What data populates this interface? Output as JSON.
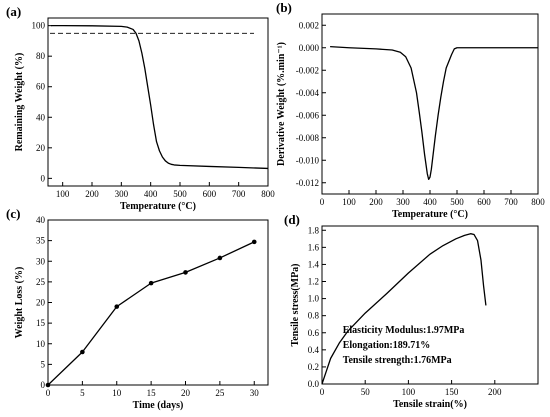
{
  "chart_data": [
    {
      "id": "a",
      "type": "line",
      "panel_label": "(a)",
      "title": "",
      "xlabel": "Temperature (°C)",
      "ylabel": "Remaining Weight (%)",
      "xlim": [
        50,
        800
      ],
      "ylim": [
        -5,
        105
      ],
      "xticks": [
        100,
        200,
        300,
        400,
        500,
        600,
        700,
        800
      ],
      "yticks": [
        0,
        20,
        40,
        60,
        80,
        100
      ],
      "reference_line": {
        "y": 95,
        "style": "dashed"
      },
      "series": [
        {
          "color": "#000000",
          "x": [
            60,
            100,
            200,
            300,
            320,
            340,
            350,
            360,
            370,
            380,
            390,
            400,
            410,
            420,
            430,
            440,
            450,
            460,
            470,
            480,
            500,
            600,
            700,
            800
          ],
          "y": [
            100,
            100,
            99.9,
            99.5,
            99,
            97.5,
            95,
            90,
            82,
            72,
            60,
            48,
            35,
            24,
            18,
            14,
            11.5,
            10,
            9.2,
            8.8,
            8.5,
            7.8,
            7.2,
            6.5
          ]
        }
      ]
    },
    {
      "id": "b",
      "type": "line",
      "panel_label": "(b)",
      "title": "",
      "xlabel": "Temperature (°C)",
      "ylabel": "Derivative Weight (%.min⁻¹)",
      "xlim": [
        0,
        800
      ],
      "ylim": [
        -0.013,
        0.003
      ],
      "xticks": [
        0,
        100,
        200,
        300,
        400,
        500,
        600,
        700,
        800
      ],
      "yticks": [
        0.002,
        0.0,
        -0.002,
        -0.004,
        -0.006,
        -0.008,
        -0.01,
        -0.012
      ],
      "ytick_labels": [
        "0.002",
        "0.000",
        "-0.002",
        "-0.004",
        "-0.006",
        "-0.008",
        "-0.010",
        "-0.012"
      ],
      "series": [
        {
          "color": "#000000",
          "x": [
            30,
            100,
            200,
            260,
            290,
            310,
            330,
            350,
            360,
            370,
            380,
            390,
            395,
            400,
            405,
            410,
            420,
            430,
            440,
            450,
            460,
            480,
            490,
            500,
            510,
            600,
            700,
            800
          ],
          "y": [
            0.0001,
            0.0,
            -0.0001,
            -0.0002,
            -0.0004,
            -0.0008,
            -0.0018,
            -0.004,
            -0.0057,
            -0.0075,
            -0.0095,
            -0.0112,
            -0.0117,
            -0.0115,
            -0.0108,
            -0.0098,
            -0.0078,
            -0.006,
            -0.0044,
            -0.003,
            -0.0018,
            -0.0006,
            -0.0001,
            0.0,
            0.0,
            0.0,
            0.0,
            0.0
          ]
        }
      ]
    },
    {
      "id": "c",
      "type": "line",
      "panel_label": "(c)",
      "title": "",
      "xlabel": "Time (days)",
      "ylabel": "Weight Loss (%)",
      "xlim": [
        0,
        32
      ],
      "ylim": [
        0,
        40
      ],
      "xticks": [
        0,
        5,
        10,
        15,
        20,
        25,
        30
      ],
      "yticks": [
        0,
        5,
        10,
        15,
        20,
        25,
        30,
        35,
        40
      ],
      "series": [
        {
          "color": "#000000",
          "markers": true,
          "x": [
            0,
            5,
            10,
            15,
            20,
            25,
            30
          ],
          "y": [
            0,
            8.0,
            19.0,
            24.7,
            27.3,
            30.8,
            34.7
          ]
        }
      ]
    },
    {
      "id": "d",
      "type": "line",
      "panel_label": "(d)",
      "title": "",
      "xlabel": "Tensile strain(%)",
      "ylabel": "Tensile stress(MPa)",
      "xlim": [
        0,
        250
      ],
      "ylim": [
        0,
        1.85
      ],
      "xticks": [
        0,
        50,
        100,
        150,
        200
      ],
      "yticks": [
        0.0,
        0.2,
        0.4,
        0.6,
        0.8,
        1.0,
        1.2,
        1.4,
        1.6,
        1.8
      ],
      "ytick_labels": [
        "0.0",
        "0.2",
        "0.4",
        "0.6",
        "0.8",
        "1.0",
        "1.2",
        "1.4",
        "1.6",
        "1.8"
      ],
      "annotations": [
        "Elasticity Modulus:1.97MPa",
        "Elongation:189.71%",
        "Tensile strength:1.76MPa"
      ],
      "series": [
        {
          "color": "#000000",
          "x": [
            0,
            5,
            10,
            20,
            30,
            50,
            75,
            100,
            125,
            140,
            155,
            165,
            172,
            176,
            180,
            184,
            187,
            189.7
          ],
          "y": [
            0,
            0.15,
            0.3,
            0.48,
            0.62,
            0.83,
            1.06,
            1.3,
            1.52,
            1.62,
            1.7,
            1.74,
            1.76,
            1.75,
            1.68,
            1.45,
            1.15,
            0.92
          ]
        }
      ]
    }
  ]
}
